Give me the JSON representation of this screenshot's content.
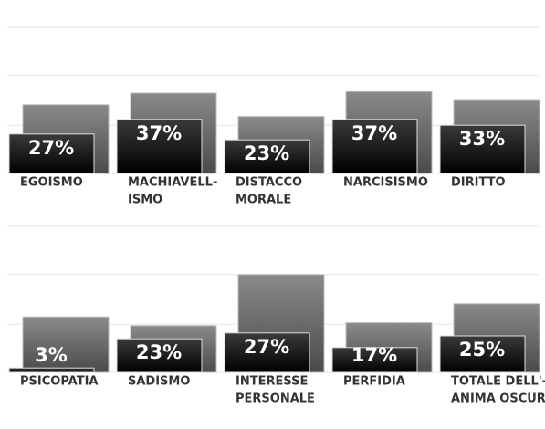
{
  "chart_data": [
    {
      "type": "bar",
      "grid": true,
      "ylim": [
        0,
        100
      ],
      "yticks": [
        0,
        33,
        67,
        100
      ],
      "categories": [
        [
          "EGOISMO"
        ],
        [
          "MACHIAVELL-",
          "ISMO"
        ],
        [
          "DISTACCO",
          "MORALE"
        ],
        [
          "NARCISISMO"
        ],
        [
          "DIRITTO"
        ]
      ],
      "series": [
        {
          "color": "#6e6e6e",
          "values": [
            47,
            55,
            39,
            56,
            50
          ]
        },
        {
          "color": "#111111",
          "values": [
            27,
            37,
            23,
            37,
            33
          ],
          "value_labels": [
            "27%",
            "37%",
            "23%",
            "37%",
            "33%"
          ]
        }
      ]
    },
    {
      "type": "bar",
      "grid": true,
      "ylim": [
        0,
        100
      ],
      "yticks": [
        0,
        33,
        67,
        100
      ],
      "categories": [
        [
          "PSICOPATIA"
        ],
        [
          "SADISMO"
        ],
        [
          "INTERESSE",
          "PERSONALE"
        ],
        [
          "PERFIDIA"
        ],
        [
          "TOTALE DELL'-",
          "ANIMA OSCURA"
        ]
      ],
      "series": [
        {
          "color": "#6e6e6e",
          "values": [
            38,
            32,
            67,
            34,
            47
          ]
        },
        {
          "color": "#111111",
          "values": [
            3,
            23,
            27,
            17,
            25
          ],
          "value_labels": [
            "3%",
            "23%",
            "27%",
            "17%",
            "25%"
          ]
        }
      ]
    }
  ]
}
